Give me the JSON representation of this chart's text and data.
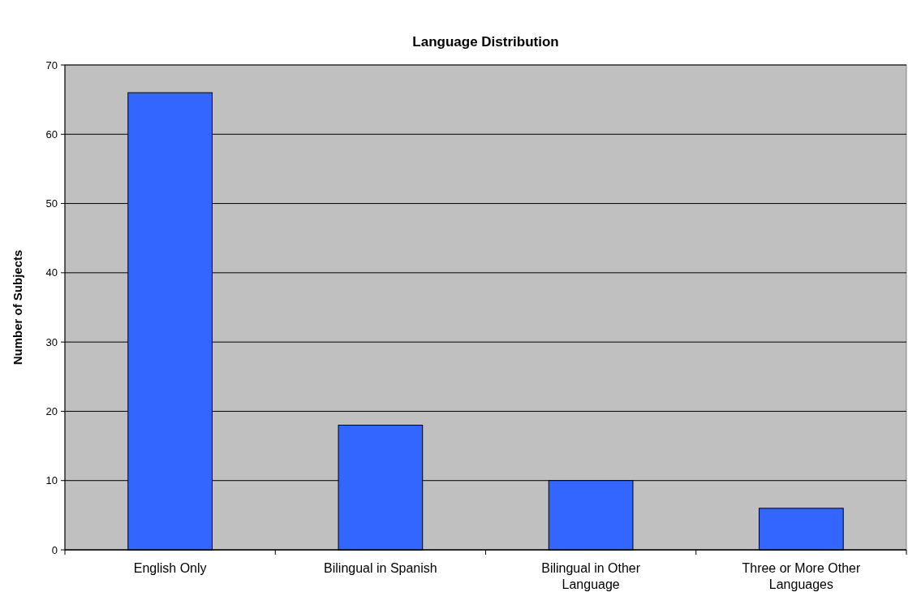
{
  "chart_data": {
    "type": "bar",
    "title": "Language Distribution",
    "ylabel": "Number of Subjects",
    "categories": [
      "English Only",
      "Bilingual in Spanish",
      "Bilingual in Other Language",
      "Three or More Other Languages"
    ],
    "values": [
      66,
      18,
      10,
      6
    ],
    "color": "#3366ff",
    "ylim": [
      0,
      70
    ],
    "yticks": [
      0,
      10,
      20,
      30,
      40,
      50,
      60,
      70
    ],
    "grid": "y"
  }
}
